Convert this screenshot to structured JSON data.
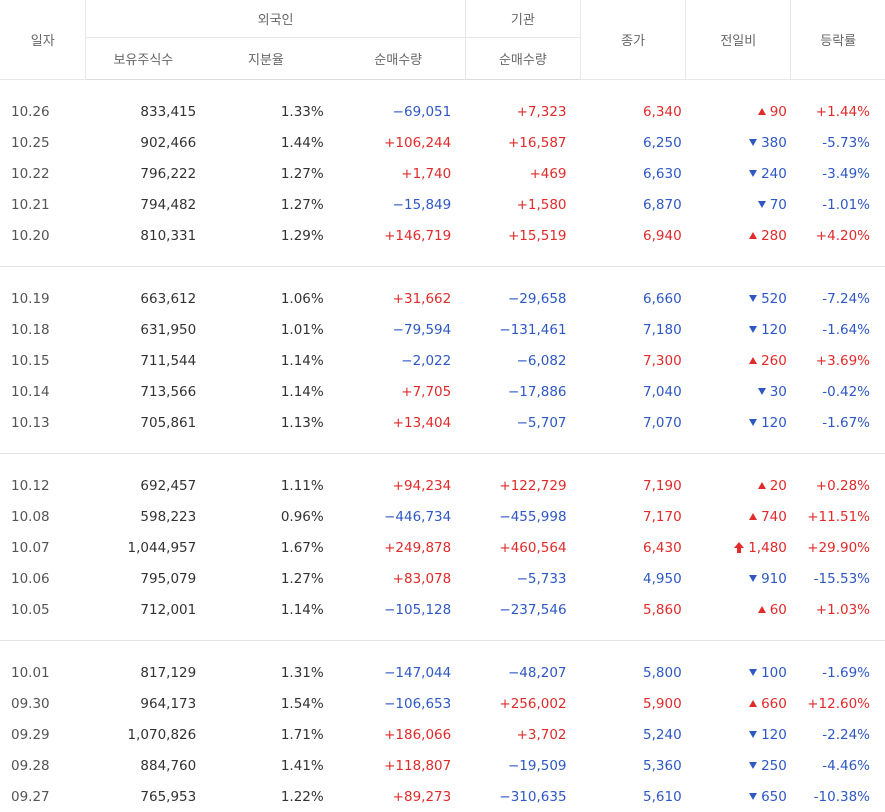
{
  "headers": {
    "date": "일자",
    "foreign": "외국인",
    "institution": "기관",
    "holdings": "보유주식수",
    "ratio": "지분율",
    "foreign_net": "순매수량",
    "inst_net": "순매수량",
    "close": "종가",
    "change": "전일비",
    "rate": "등락률"
  },
  "colors": {
    "up": "#e12b2b",
    "down": "#2f58c4"
  },
  "groups": [
    [
      {
        "date": "10.26",
        "holdings": "833,415",
        "ratio": "1.33%",
        "foreign_net": "−69,051",
        "fn_dir": "down",
        "inst_net": "+7,323",
        "in_dir": "up",
        "close": "6,340",
        "close_dir": "up",
        "change": "90",
        "change_icon": "up",
        "rate": "+1.44%"
      },
      {
        "date": "10.25",
        "holdings": "902,466",
        "ratio": "1.44%",
        "foreign_net": "+106,244",
        "fn_dir": "up",
        "inst_net": "+16,587",
        "in_dir": "up",
        "close": "6,250",
        "close_dir": "down",
        "change": "380",
        "change_icon": "down",
        "rate": "-5.73%"
      },
      {
        "date": "10.22",
        "holdings": "796,222",
        "ratio": "1.27%",
        "foreign_net": "+1,740",
        "fn_dir": "up",
        "inst_net": "+469",
        "in_dir": "up",
        "close": "6,630",
        "close_dir": "down",
        "change": "240",
        "change_icon": "down",
        "rate": "-3.49%"
      },
      {
        "date": "10.21",
        "holdings": "794,482",
        "ratio": "1.27%",
        "foreign_net": "−15,849",
        "fn_dir": "down",
        "inst_net": "+1,580",
        "in_dir": "up",
        "close": "6,870",
        "close_dir": "down",
        "change": "70",
        "change_icon": "down",
        "rate": "-1.01%"
      },
      {
        "date": "10.20",
        "holdings": "810,331",
        "ratio": "1.29%",
        "foreign_net": "+146,719",
        "fn_dir": "up",
        "inst_net": "+15,519",
        "in_dir": "up",
        "close": "6,940",
        "close_dir": "up",
        "change": "280",
        "change_icon": "up",
        "rate": "+4.20%"
      }
    ],
    [
      {
        "date": "10.19",
        "holdings": "663,612",
        "ratio": "1.06%",
        "foreign_net": "+31,662",
        "fn_dir": "up",
        "inst_net": "−29,658",
        "in_dir": "down",
        "close": "6,660",
        "close_dir": "down",
        "change": "520",
        "change_icon": "down",
        "rate": "-7.24%"
      },
      {
        "date": "10.18",
        "holdings": "631,950",
        "ratio": "1.01%",
        "foreign_net": "−79,594",
        "fn_dir": "down",
        "inst_net": "−131,461",
        "in_dir": "down",
        "close": "7,180",
        "close_dir": "down",
        "change": "120",
        "change_icon": "down",
        "rate": "-1.64%"
      },
      {
        "date": "10.15",
        "holdings": "711,544",
        "ratio": "1.14%",
        "foreign_net": "−2,022",
        "fn_dir": "down",
        "inst_net": "−6,082",
        "in_dir": "down",
        "close": "7,300",
        "close_dir": "up",
        "change": "260",
        "change_icon": "up",
        "rate": "+3.69%"
      },
      {
        "date": "10.14",
        "holdings": "713,566",
        "ratio": "1.14%",
        "foreign_net": "+7,705",
        "fn_dir": "up",
        "inst_net": "−17,886",
        "in_dir": "down",
        "close": "7,040",
        "close_dir": "down",
        "change": "30",
        "change_icon": "down",
        "rate": "-0.42%"
      },
      {
        "date": "10.13",
        "holdings": "705,861",
        "ratio": "1.13%",
        "foreign_net": "+13,404",
        "fn_dir": "up",
        "inst_net": "−5,707",
        "in_dir": "down",
        "close": "7,070",
        "close_dir": "down",
        "change": "120",
        "change_icon": "down",
        "rate": "-1.67%"
      }
    ],
    [
      {
        "date": "10.12",
        "holdings": "692,457",
        "ratio": "1.11%",
        "foreign_net": "+94,234",
        "fn_dir": "up",
        "inst_net": "+122,729",
        "in_dir": "up",
        "close": "7,190",
        "close_dir": "up",
        "change": "20",
        "change_icon": "up",
        "rate": "+0.28%"
      },
      {
        "date": "10.08",
        "holdings": "598,223",
        "ratio": "0.96%",
        "foreign_net": "−446,734",
        "fn_dir": "down",
        "inst_net": "−455,998",
        "in_dir": "down",
        "close": "7,170",
        "close_dir": "up",
        "change": "740",
        "change_icon": "up",
        "rate": "+11.51%"
      },
      {
        "date": "10.07",
        "holdings": "1,044,957",
        "ratio": "1.67%",
        "foreign_net": "+249,878",
        "fn_dir": "up",
        "inst_net": "+460,564",
        "in_dir": "up",
        "close": "6,430",
        "close_dir": "up",
        "change": "1,480",
        "change_icon": "limitup",
        "rate": "+29.90%"
      },
      {
        "date": "10.06",
        "holdings": "795,079",
        "ratio": "1.27%",
        "foreign_net": "+83,078",
        "fn_dir": "up",
        "inst_net": "−5,733",
        "in_dir": "down",
        "close": "4,950",
        "close_dir": "down",
        "change": "910",
        "change_icon": "down",
        "rate": "-15.53%"
      },
      {
        "date": "10.05",
        "holdings": "712,001",
        "ratio": "1.14%",
        "foreign_net": "−105,128",
        "fn_dir": "down",
        "inst_net": "−237,546",
        "in_dir": "down",
        "close": "5,860",
        "close_dir": "up",
        "change": "60",
        "change_icon": "up",
        "rate": "+1.03%"
      }
    ],
    [
      {
        "date": "10.01",
        "holdings": "817,129",
        "ratio": "1.31%",
        "foreign_net": "−147,044",
        "fn_dir": "down",
        "inst_net": "−48,207",
        "in_dir": "down",
        "close": "5,800",
        "close_dir": "down",
        "change": "100",
        "change_icon": "down",
        "rate": "-1.69%"
      },
      {
        "date": "09.30",
        "holdings": "964,173",
        "ratio": "1.54%",
        "foreign_net": "−106,653",
        "fn_dir": "down",
        "inst_net": "+256,002",
        "in_dir": "up",
        "close": "5,900",
        "close_dir": "up",
        "change": "660",
        "change_icon": "up",
        "rate": "+12.60%"
      },
      {
        "date": "09.29",
        "holdings": "1,070,826",
        "ratio": "1.71%",
        "foreign_net": "+186,066",
        "fn_dir": "up",
        "inst_net": "+3,702",
        "in_dir": "up",
        "close": "5,240",
        "close_dir": "down",
        "change": "120",
        "change_icon": "down",
        "rate": "-2.24%"
      },
      {
        "date": "09.28",
        "holdings": "884,760",
        "ratio": "1.41%",
        "foreign_net": "+118,807",
        "fn_dir": "up",
        "inst_net": "−19,509",
        "in_dir": "down",
        "close": "5,360",
        "close_dir": "down",
        "change": "250",
        "change_icon": "down",
        "rate": "-4.46%"
      },
      {
        "date": "09.27",
        "holdings": "765,953",
        "ratio": "1.22%",
        "foreign_net": "+89,273",
        "fn_dir": "up",
        "inst_net": "−310,635",
        "in_dir": "down",
        "close": "5,610",
        "close_dir": "down",
        "change": "650",
        "change_icon": "down",
        "rate": "-10.38%"
      }
    ]
  ]
}
